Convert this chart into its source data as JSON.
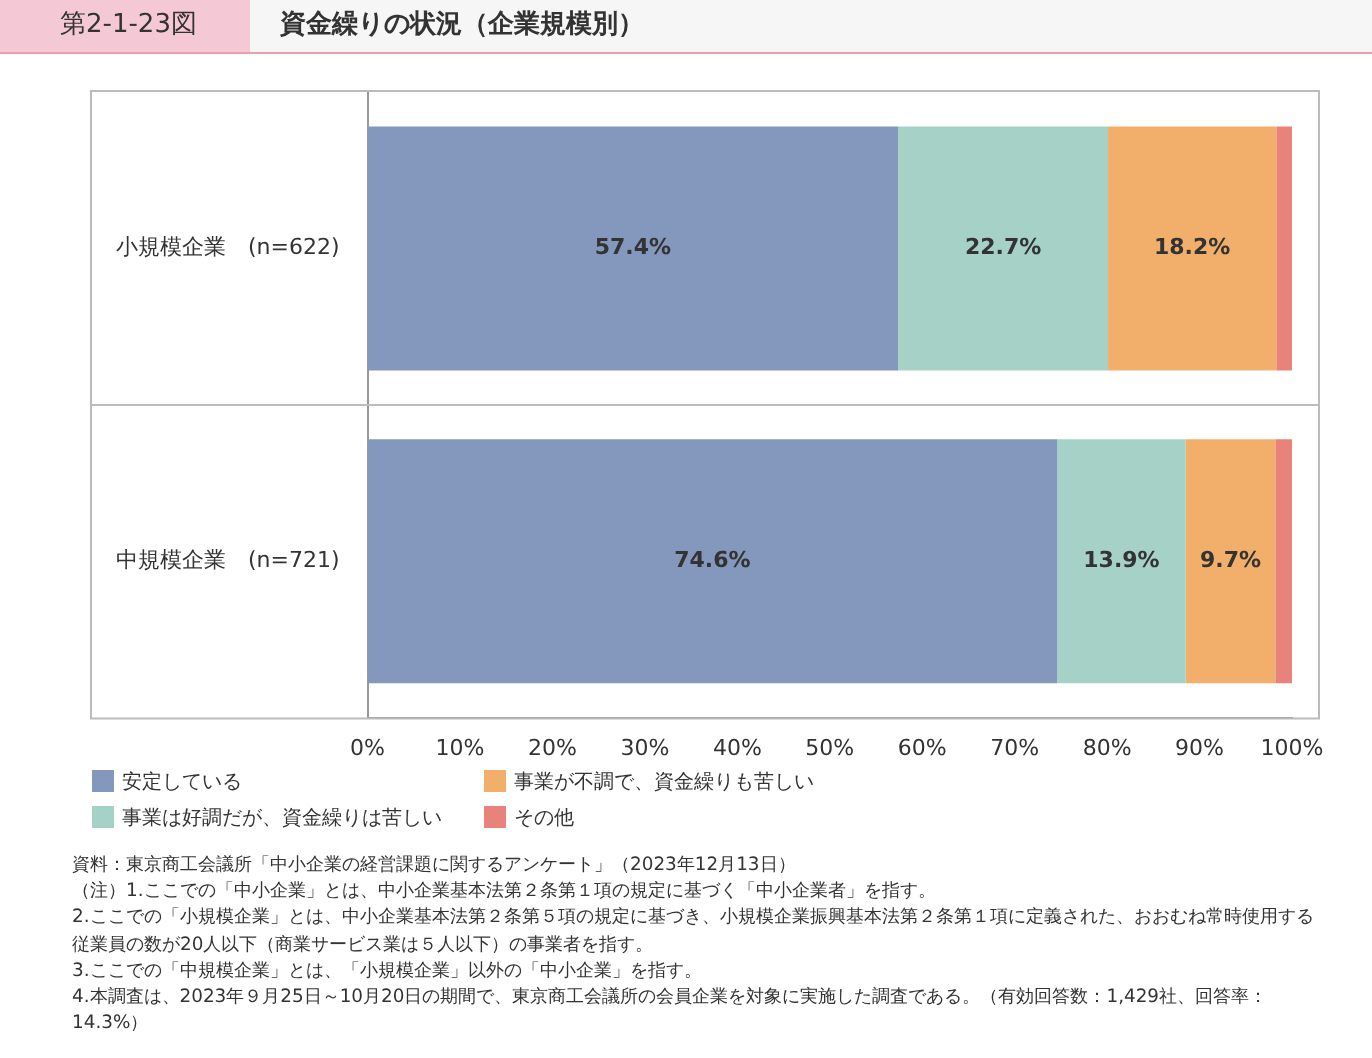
{
  "chart_data": {
    "type": "bar",
    "orientation": "horizontal",
    "stacked": true,
    "title": "資金繰りの状況（企業規模別）",
    "subtitle": "第2-1-23図",
    "categories": [
      "小規模企業　(n=622)",
      "中規模企業　(n=721)"
    ],
    "series": [
      {
        "name": "安定している",
        "color": "#8497bd",
        "values": [
          57.4,
          74.6
        ],
        "value_labels": [
          "57.4%",
          "74.6%"
        ]
      },
      {
        "name": "事業は好調だが、資金繰りは苦しい",
        "color": "#a6d1c6",
        "values": [
          22.7,
          13.9
        ],
        "value_labels": [
          "22.7%",
          "13.9%"
        ]
      },
      {
        "name": "事業が不調で、資金繰りも苦しい",
        "color": "#f2ae6b",
        "values": [
          18.2,
          9.7
        ],
        "value_labels": [
          "18.2%",
          "9.7%"
        ]
      },
      {
        "name": "その他",
        "color": "#e8837b",
        "values": [
          1.7,
          1.8
        ],
        "value_labels": [
          null,
          null
        ]
      }
    ],
    "xlim": [
      0,
      100
    ],
    "xticks": [
      {
        "value": 0,
        "label": "0%"
      },
      {
        "value": 10,
        "label": "10%"
      },
      {
        "value": 20,
        "label": "20%"
      },
      {
        "value": 30,
        "label": "30%"
      },
      {
        "value": 40,
        "label": "40%"
      },
      {
        "value": 50,
        "label": "50%"
      },
      {
        "value": 60,
        "label": "60%"
      },
      {
        "value": 70,
        "label": "70%"
      },
      {
        "value": 80,
        "label": "80%"
      },
      {
        "value": 90,
        "label": "90%"
      },
      {
        "value": 100,
        "label": "100%"
      }
    ],
    "legend": "bottom",
    "annotations": [
      "資料：東京商工会議所「中小企業の経営課題に関するアンケート」（2023年12月13日）",
      "（注）1.ここでの「中小企業」とは、中小企業基本法第２条第１項の規定に基づく「中小企業者」を指す。",
      "2.ここでの「小規模企業」とは、中小企業基本法第２条第５項の規定に基づき、小規模企業振興基本法第２条第１項に定義された、おおむね常時使用する従業員の数が20人以下（商業サービス業は５人以下）の事業者を指す。",
      "3.ここでの「中規模企業」とは、「小規模企業」以外の「中小企業」を指す。",
      "4.本調査は、2023年９月25日～10月20日の期間で、東京商工会議所の会員企業を対象に実施した調査である。（有効回答数：1,429社、回答率：14.3%）"
    ]
  }
}
